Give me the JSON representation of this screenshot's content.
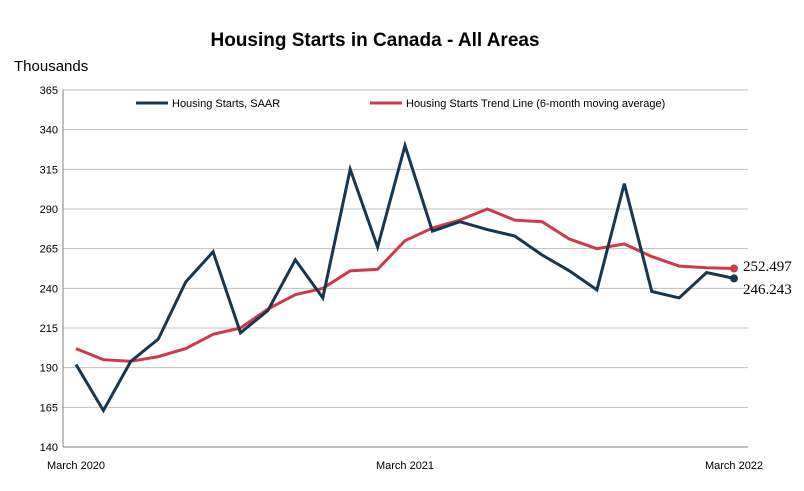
{
  "title": "Housing Starts in Canada - All Areas",
  "y_unit_label": "Thousands",
  "colors": {
    "actual": "#17364f",
    "trend": "#cf3a4a",
    "grid": "#bfbfbf",
    "axis": "#808080"
  },
  "chart_data": {
    "type": "line",
    "title": "Housing Starts in Canada - All Areas",
    "ylabel": "Thousands",
    "xlabel": "",
    "ylim": [
      140,
      365
    ],
    "yticks": [
      140,
      165,
      190,
      215,
      240,
      265,
      290,
      315,
      340,
      365
    ],
    "x_tick_labels": [
      {
        "index": 0,
        "label": "March 2020"
      },
      {
        "index": 12,
        "label": "March 2021"
      },
      {
        "index": 24,
        "label": "March 2022"
      }
    ],
    "grid": true,
    "legend_position": "top",
    "series": [
      {
        "name": "Housing Starts, SAAR",
        "color": "#17364f",
        "values": [
          192,
          163,
          194,
          208,
          244,
          263,
          212,
          226,
          258,
          234,
          315,
          266,
          330,
          276,
          282,
          277,
          273,
          261,
          251,
          239,
          306,
          238,
          234,
          250,
          246.243
        ]
      },
      {
        "name": "Housing Starts Trend Line (6-month moving average)",
        "color": "#cf3a4a",
        "values": [
          202,
          195,
          194,
          197,
          202,
          211,
          215,
          227,
          236,
          240,
          251,
          252,
          270,
          278,
          283,
          290,
          283,
          282,
          271,
          265,
          268,
          260,
          254,
          253,
          252.497
        ]
      }
    ],
    "end_labels": [
      "252.497",
      "246.243"
    ]
  }
}
